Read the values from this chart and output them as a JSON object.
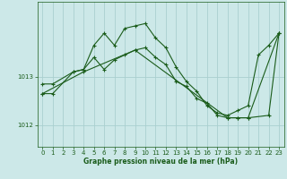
{
  "xlabel": "Graphe pression niveau de la mer (hPa)",
  "bg_color": "#cce8e8",
  "line_color": "#1a5c1a",
  "grid_color": "#aacfcf",
  "ylim": [
    1011.55,
    1014.55
  ],
  "yticks": [
    1012,
    1013
  ],
  "xlim": [
    -0.5,
    23.5
  ],
  "xticks": [
    0,
    1,
    2,
    3,
    4,
    5,
    6,
    7,
    8,
    9,
    10,
    11,
    12,
    13,
    14,
    15,
    16,
    17,
    18,
    19,
    20,
    21,
    22,
    23
  ],
  "line1_x": [
    0,
    1,
    3,
    4,
    5,
    6,
    7,
    8,
    9,
    10,
    11,
    12,
    13,
    14,
    15,
    16,
    17,
    18,
    19,
    20,
    21,
    22,
    23
  ],
  "line1_y": [
    1012.85,
    1012.85,
    1013.1,
    1013.15,
    1013.65,
    1013.9,
    1013.65,
    1014.0,
    1014.05,
    1014.1,
    1013.8,
    1013.6,
    1013.2,
    1012.9,
    1012.7,
    1012.4,
    1012.25,
    1012.2,
    1012.3,
    1012.4,
    1013.45,
    1013.65,
    1013.9
  ],
  "line2_x": [
    0,
    1,
    3,
    4,
    5,
    6,
    7,
    8,
    9,
    10,
    11,
    12,
    13,
    14,
    15,
    16,
    17,
    18,
    19,
    20,
    23
  ],
  "line2_y": [
    1012.65,
    1012.65,
    1013.1,
    1013.15,
    1013.4,
    1013.15,
    1013.35,
    1013.45,
    1013.55,
    1013.6,
    1013.4,
    1013.25,
    1012.9,
    1012.8,
    1012.55,
    1012.45,
    1012.2,
    1012.15,
    1012.15,
    1012.15,
    1013.9
  ],
  "line3_x": [
    0,
    4,
    9,
    18,
    19,
    20,
    22,
    23
  ],
  "line3_y": [
    1012.65,
    1013.1,
    1013.55,
    1012.15,
    1012.15,
    1012.15,
    1012.2,
    1013.9
  ]
}
